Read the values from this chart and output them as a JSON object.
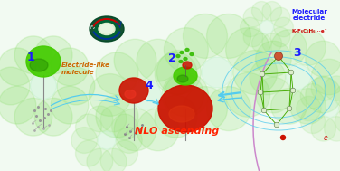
{
  "bg_color": "#f0f8f0",
  "label1": "1",
  "label2": "2",
  "label3": "3",
  "label4": "4",
  "text_electride_like": "Electride-like\nmolecule",
  "text_nlo": "NLO ascending",
  "text_molecular_electride": "Molecular\nelectride",
  "text_formula": "K–F₆C₆H₆···e⁻",
  "text_e": "e",
  "label_color": "#1a1aff",
  "nlo_color": "#ff2200",
  "electride_color": "#cc6600",
  "molecular_color": "#1a1aff",
  "formula_color": "#cc0000",
  "arrow_color": "#55ccee",
  "green_blob_color": "#44cc00",
  "purple_arc_color": "#cc88cc",
  "ring_green": "#006633",
  "ring_blue": "#003399",
  "ring_red": "#cc0000"
}
